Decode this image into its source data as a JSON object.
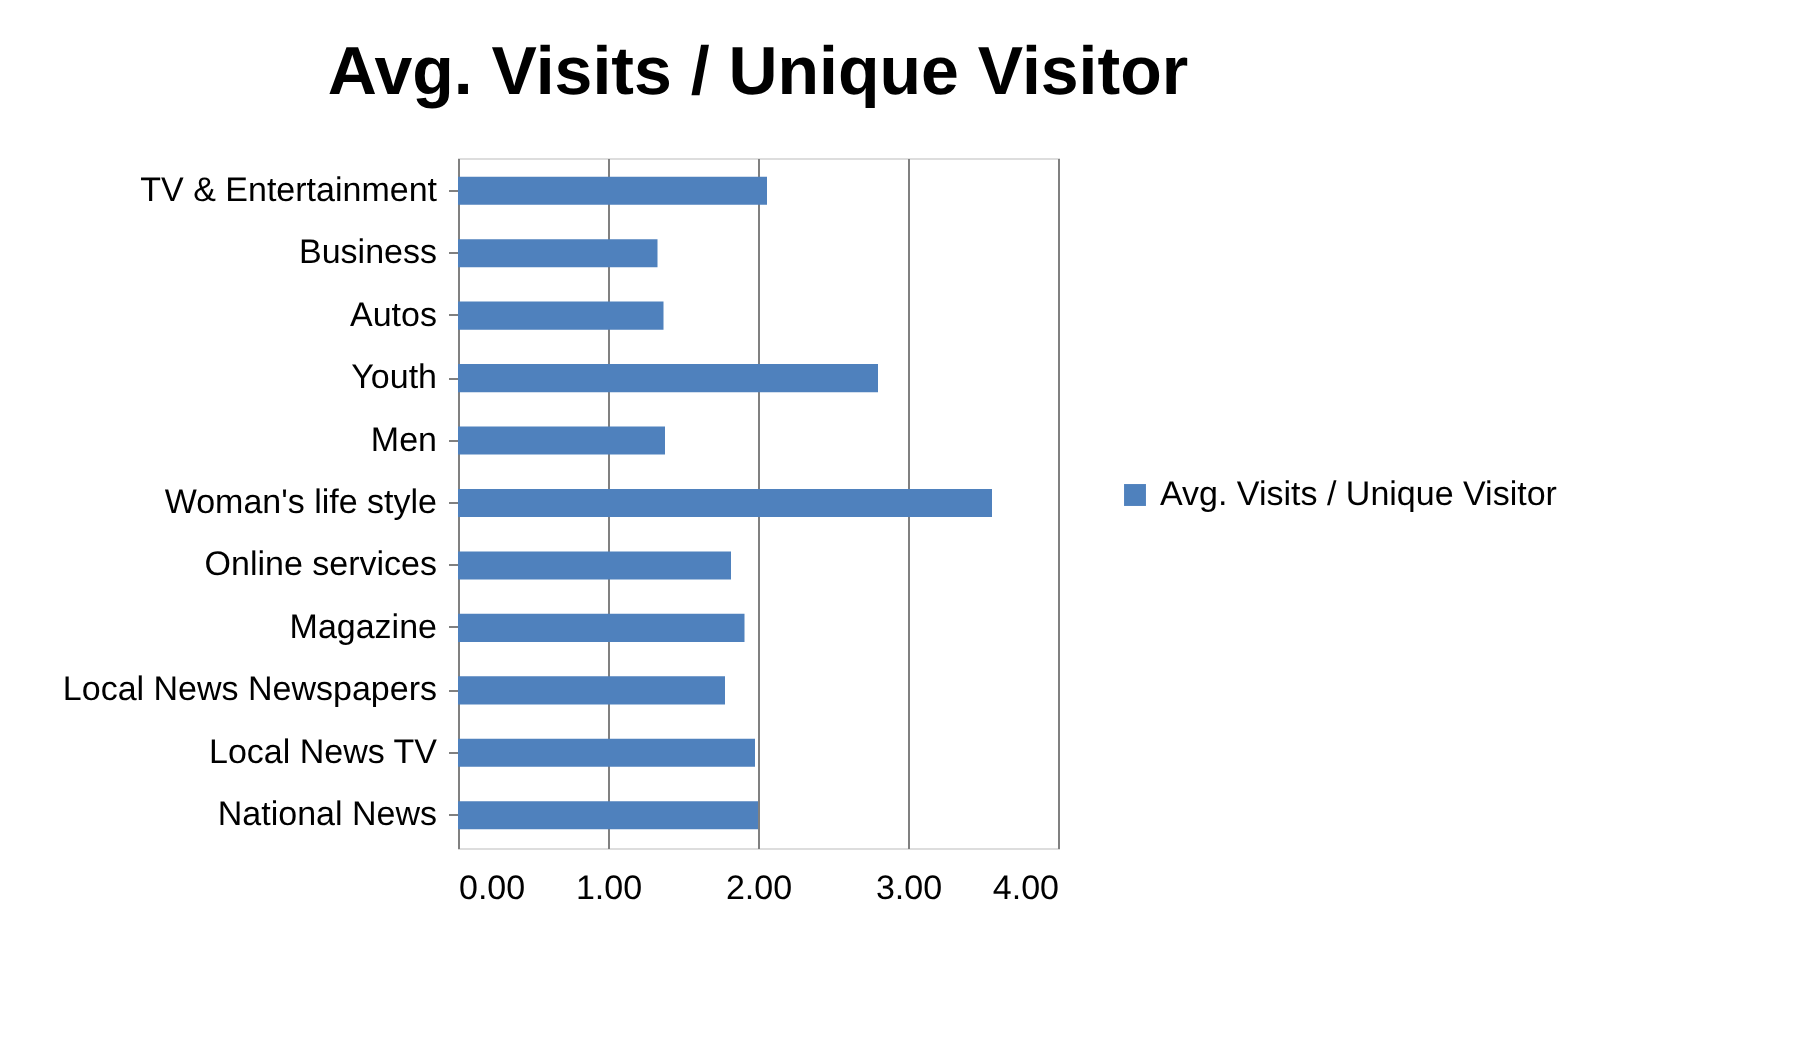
{
  "chart_data": {
    "type": "bar",
    "orientation": "horizontal",
    "title": "Avg. Visits / Unique Visitor",
    "categories": [
      "TV & Entertainment",
      "Business",
      "Autos",
      "Youth",
      "Men",
      "Woman's life style",
      "Online services",
      "Magazine",
      "Local News Newspapers",
      "Local News TV",
      "National News"
    ],
    "series": [
      {
        "name": "Avg. Visits / Unique Visitor",
        "color": "#4f81bd",
        "values": [
          2.06,
          1.33,
          1.37,
          2.8,
          1.38,
          3.56,
          1.82,
          1.91,
          1.78,
          1.98,
          2.0
        ]
      }
    ],
    "xlim": [
      0,
      4
    ],
    "xticks": [
      {
        "value": 0,
        "label": "0.00"
      },
      {
        "value": 1,
        "label": "1.00"
      },
      {
        "value": 2,
        "label": "2.00"
      },
      {
        "value": 3,
        "label": "3.00"
      },
      {
        "value": 4,
        "label": "4.00"
      }
    ],
    "grid": "x",
    "legend": "right"
  }
}
